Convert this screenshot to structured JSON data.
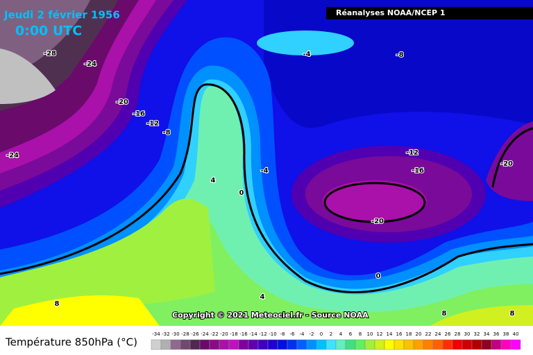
{
  "header": {
    "date": "Jeudi 2 février 1956",
    "time": "0:00 UTC",
    "source": "Réanalyses NOAA/NCEP 1",
    "copyright": "Copyright © 2021 Meteociel.fr - Source NOAA"
  },
  "contour_labels": [
    "-28",
    "-24",
    "-20",
    "-16",
    "-12",
    "-8",
    "-24",
    "-4",
    "-8",
    "4",
    "0",
    "-4",
    "-12",
    "-16",
    "-20",
    "-20",
    "0",
    "4",
    "8",
    "8",
    "8"
  ],
  "legend": {
    "title": "Température 850hPa (°C)",
    "labels": [
      "-34",
      "-32",
      "-30",
      "-28",
      "-26",
      "-24",
      "-22",
      "-20",
      "-18",
      "-16",
      "-14",
      "-12",
      "-10",
      "-8",
      "-6",
      "-4",
      "-2",
      "0",
      "2",
      "4",
      "6",
      "8",
      "10",
      "12",
      "14",
      "16",
      "18",
      "20",
      "22",
      "24",
      "26",
      "28",
      "30",
      "32",
      "34",
      "36",
      "38",
      "40"
    ]
  }
}
